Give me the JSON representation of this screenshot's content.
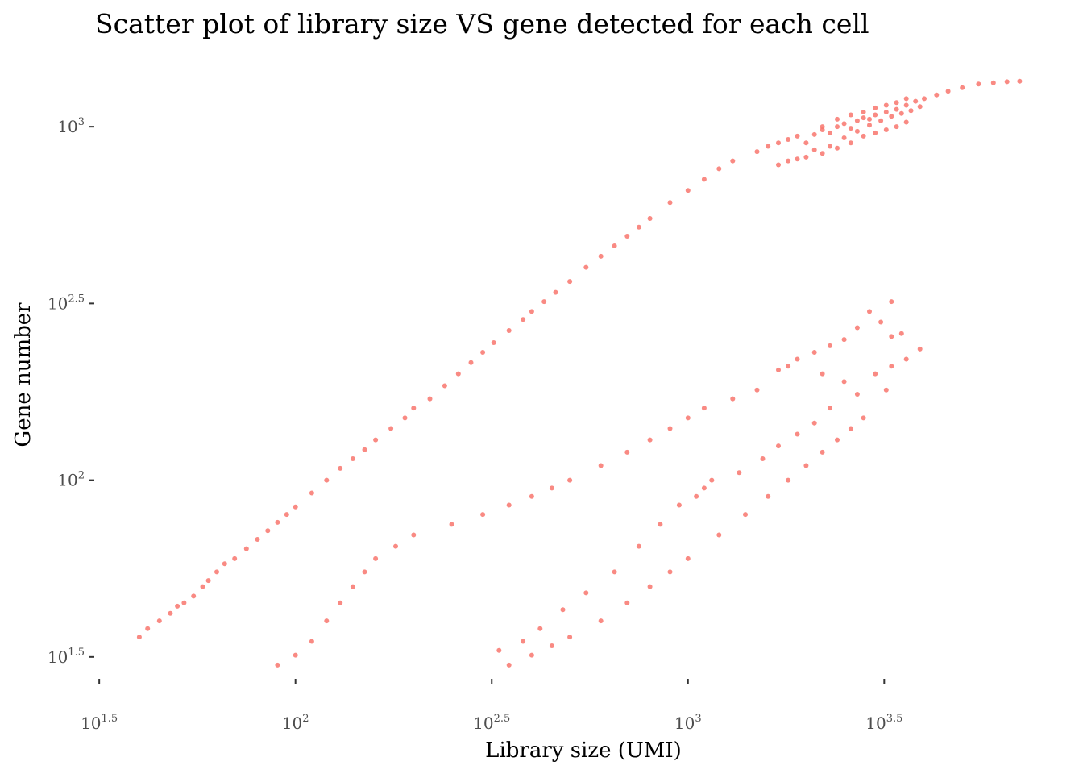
{
  "chart_data": {
    "type": "scatter",
    "title": "Scatter plot of library size VS gene detected for each cell",
    "xlabel": "Library size (UMI)",
    "ylabel": "Gene number",
    "x_scale": "log10",
    "y_scale": "log10",
    "xlim": [
      31.6,
      7500
    ],
    "ylim": [
      28,
      1350
    ],
    "grid": false,
    "legend": "none",
    "point_color": "#F8766D",
    "x_ticks": [
      {
        "base": "10",
        "exp": "1.5"
      },
      {
        "base": "10",
        "exp": "2"
      },
      {
        "base": "10",
        "exp": "2.5"
      },
      {
        "base": "10",
        "exp": "3"
      },
      {
        "base": "10",
        "exp": "3.5"
      }
    ],
    "y_ticks": [
      {
        "base": "10",
        "exp": "1.5"
      },
      {
        "base": "10",
        "exp": "2"
      },
      {
        "base": "10",
        "exp": "2.5"
      },
      {
        "base": "10",
        "exp": "3"
      }
    ],
    "points": [
      [
        40,
        36
      ],
      [
        42,
        38
      ],
      [
        45,
        40
      ],
      [
        48,
        42
      ],
      [
        50,
        44
      ],
      [
        52,
        45
      ],
      [
        55,
        47
      ],
      [
        58,
        50
      ],
      [
        60,
        52
      ],
      [
        63,
        55
      ],
      [
        66,
        58
      ],
      [
        70,
        60
      ],
      [
        75,
        64
      ],
      [
        80,
        68
      ],
      [
        85,
        72
      ],
      [
        90,
        76
      ],
      [
        95,
        80
      ],
      [
        100,
        84
      ],
      [
        110,
        92
      ],
      [
        120,
        100
      ],
      [
        130,
        108
      ],
      [
        140,
        115
      ],
      [
        150,
        122
      ],
      [
        160,
        130
      ],
      [
        175,
        140
      ],
      [
        190,
        150
      ],
      [
        200,
        160
      ],
      [
        220,
        170
      ],
      [
        240,
        185
      ],
      [
        260,
        200
      ],
      [
        280,
        215
      ],
      [
        300,
        230
      ],
      [
        320,
        245
      ],
      [
        350,
        265
      ],
      [
        380,
        285
      ],
      [
        400,
        300
      ],
      [
        430,
        320
      ],
      [
        460,
        340
      ],
      [
        500,
        365
      ],
      [
        550,
        400
      ],
      [
        600,
        430
      ],
      [
        650,
        460
      ],
      [
        700,
        490
      ],
      [
        750,
        520
      ],
      [
        800,
        550
      ],
      [
        900,
        610
      ],
      [
        1000,
        660
      ],
      [
        1100,
        710
      ],
      [
        1200,
        760
      ],
      [
        1300,
        800
      ],
      [
        1500,
        850
      ],
      [
        1600,
        880
      ],
      [
        1700,
        900
      ],
      [
        1800,
        920
      ],
      [
        1900,
        940
      ],
      [
        2000,
        900
      ],
      [
        2100,
        950
      ],
      [
        2200,
        980
      ],
      [
        2300,
        960
      ],
      [
        2400,
        1000
      ],
      [
        2500,
        1020
      ],
      [
        2600,
        990
      ],
      [
        2700,
        1040
      ],
      [
        2800,
        1060
      ],
      [
        2900,
        1050
      ],
      [
        3000,
        1080
      ],
      [
        3200,
        1100
      ],
      [
        3400,
        1120
      ],
      [
        3600,
        1150
      ],
      [
        3800,
        1180
      ],
      [
        4000,
        1200
      ],
      [
        4300,
        1230
      ],
      [
        4600,
        1260
      ],
      [
        5000,
        1290
      ],
      [
        5500,
        1320
      ],
      [
        6000,
        1330
      ],
      [
        6500,
        1340
      ],
      [
        7000,
        1345
      ],
      [
        2100,
        860
      ],
      [
        2300,
        880
      ],
      [
        2500,
        930
      ],
      [
        2700,
        970
      ],
      [
        2900,
        1010
      ],
      [
        3100,
        1040
      ],
      [
        3300,
        1070
      ],
      [
        3500,
        1090
      ],
      [
        3700,
        1110
      ],
      [
        3900,
        1140
      ],
      [
        2000,
        820
      ],
      [
        2200,
        840
      ],
      [
        2400,
        870
      ],
      [
        2600,
        900
      ],
      [
        2800,
        940
      ],
      [
        3000,
        960
      ],
      [
        3200,
        980
      ],
      [
        3400,
        1000
      ],
      [
        3600,
        1030
      ],
      [
        1700,
        780
      ],
      [
        1800,
        800
      ],
      [
        1900,
        810
      ],
      [
        2200,
        1000
      ],
      [
        2400,
        1050
      ],
      [
        2600,
        1080
      ],
      [
        2800,
        1100
      ],
      [
        3000,
        1130
      ],
      [
        3200,
        1150
      ],
      [
        3400,
        1170
      ],
      [
        3600,
        1200
      ],
      [
        3300,
        320
      ],
      [
        3300,
        255
      ],
      [
        3300,
        210
      ],
      [
        2500,
        190
      ],
      [
        2200,
        200
      ],
      [
        1800,
        210
      ],
      [
        1500,
        180
      ],
      [
        1300,
        170
      ],
      [
        1100,
        160
      ],
      [
        1000,
        150
      ],
      [
        900,
        140
      ],
      [
        800,
        130
      ],
      [
        700,
        120
      ],
      [
        600,
        110
      ],
      [
        500,
        100
      ],
      [
        450,
        95
      ],
      [
        400,
        90
      ],
      [
        350,
        85
      ],
      [
        300,
        80
      ],
      [
        250,
        75
      ],
      [
        200,
        70
      ],
      [
        180,
        65
      ],
      [
        160,
        60
      ],
      [
        150,
        55
      ],
      [
        140,
        50
      ],
      [
        130,
        45
      ],
      [
        120,
        40
      ],
      [
        110,
        35
      ],
      [
        100,
        32
      ],
      [
        90,
        30
      ],
      [
        3600,
        220
      ],
      [
        3200,
        180
      ],
      [
        2800,
        150
      ],
      [
        2600,
        140
      ],
      [
        2400,
        130
      ],
      [
        2200,
        120
      ],
      [
        2000,
        110
      ],
      [
        1800,
        100
      ],
      [
        1600,
        90
      ],
      [
        1400,
        80
      ],
      [
        1200,
        70
      ],
      [
        1000,
        60
      ],
      [
        900,
        55
      ],
      [
        800,
        50
      ],
      [
        700,
        45
      ],
      [
        600,
        40
      ],
      [
        500,
        36
      ],
      [
        450,
        34
      ],
      [
        400,
        32
      ],
      [
        350,
        30
      ],
      [
        1100,
        95
      ],
      [
        950,
        85
      ],
      [
        850,
        75
      ],
      [
        750,
        65
      ],
      [
        650,
        55
      ],
      [
        550,
        48
      ],
      [
        480,
        43
      ],
      [
        420,
        38
      ],
      [
        380,
        35
      ],
      [
        330,
        33
      ],
      [
        3000,
        200
      ],
      [
        2700,
        175
      ],
      [
        2300,
        160
      ],
      [
        2100,
        145
      ],
      [
        1900,
        135
      ],
      [
        1700,
        125
      ],
      [
        1550,
        115
      ],
      [
        1350,
        105
      ],
      [
        1150,
        100
      ],
      [
        1050,
        90
      ],
      [
        3900,
        235
      ],
      [
        3500,
        260
      ],
      [
        3100,
        280
      ],
      [
        2900,
        300
      ],
      [
        2700,
        270
      ],
      [
        2500,
        250
      ],
      [
        2300,
        240
      ],
      [
        2100,
        230
      ],
      [
        1900,
        220
      ],
      [
        1700,
        205
      ]
    ]
  }
}
